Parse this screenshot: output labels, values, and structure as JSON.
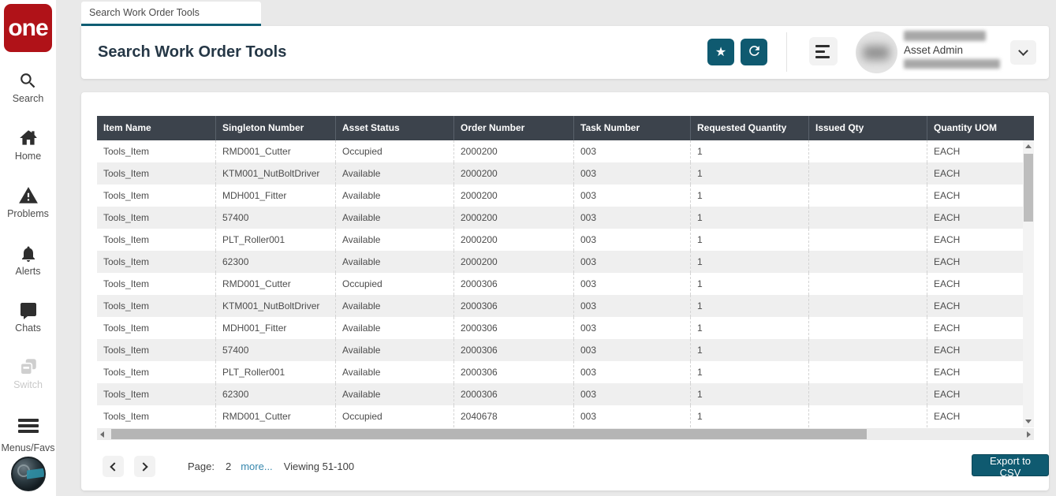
{
  "colors": {
    "accent_teal": "#0f5a70",
    "logo_red": "#b01218",
    "badge_red": "#a50d1d",
    "table_header_bg": "#3c434c",
    "link_blue": "#3787ad"
  },
  "sidebar": {
    "logo_text": "one",
    "items": [
      {
        "id": "search",
        "label": "Search"
      },
      {
        "id": "home",
        "label": "Home"
      },
      {
        "id": "problems",
        "label": "Problems"
      },
      {
        "id": "alerts",
        "label": "Alerts"
      },
      {
        "id": "chats",
        "label": "Chats"
      },
      {
        "id": "switch",
        "label": "Switch"
      },
      {
        "id": "menus-favs",
        "label": "Menus/Favs"
      }
    ]
  },
  "tab": {
    "label": "Search Work Order Tools"
  },
  "header": {
    "title": "Search Work Order Tools",
    "user_role": "Asset Admin"
  },
  "table": {
    "columns": [
      "Item Name",
      "Singleton Number",
      "Asset Status",
      "Order Number",
      "Task Number",
      "Requested Quantity",
      "Issued Qty",
      "Quantity UOM"
    ],
    "rows": [
      [
        "Tools_Item",
        "RMD001_Cutter",
        "Occupied",
        "2000200",
        "003",
        "1",
        "",
        "EACH"
      ],
      [
        "Tools_Item",
        "KTM001_NutBoltDriver",
        "Available",
        "2000200",
        "003",
        "1",
        "",
        "EACH"
      ],
      [
        "Tools_Item",
        "MDH001_Fitter",
        "Available",
        "2000200",
        "003",
        "1",
        "",
        "EACH"
      ],
      [
        "Tools_Item",
        "57400",
        "Available",
        "2000200",
        "003",
        "1",
        "",
        "EACH"
      ],
      [
        "Tools_Item",
        "PLT_Roller001",
        "Available",
        "2000200",
        "003",
        "1",
        "",
        "EACH"
      ],
      [
        "Tools_Item",
        "62300",
        "Available",
        "2000200",
        "003",
        "1",
        "",
        "EACH"
      ],
      [
        "Tools_Item",
        "RMD001_Cutter",
        "Occupied",
        "2000306",
        "003",
        "1",
        "",
        "EACH"
      ],
      [
        "Tools_Item",
        "KTM001_NutBoltDriver",
        "Available",
        "2000306",
        "003",
        "1",
        "",
        "EACH"
      ],
      [
        "Tools_Item",
        "MDH001_Fitter",
        "Available",
        "2000306",
        "003",
        "1",
        "",
        "EACH"
      ],
      [
        "Tools_Item",
        "57400",
        "Available",
        "2000306",
        "003",
        "1",
        "",
        "EACH"
      ],
      [
        "Tools_Item",
        "PLT_Roller001",
        "Available",
        "2000306",
        "003",
        "1",
        "",
        "EACH"
      ],
      [
        "Tools_Item",
        "62300",
        "Available",
        "2000306",
        "003",
        "1",
        "",
        "EACH"
      ],
      [
        "Tools_Item",
        "RMD001_Cutter",
        "Occupied",
        "2040678",
        "003",
        "1",
        "",
        "EACH"
      ]
    ]
  },
  "pagination": {
    "page_label": "Page:",
    "page_number": "2",
    "more_label": "more...",
    "viewing_label": "Viewing 51-100"
  },
  "actions": {
    "export_label": "Export to CSV"
  }
}
